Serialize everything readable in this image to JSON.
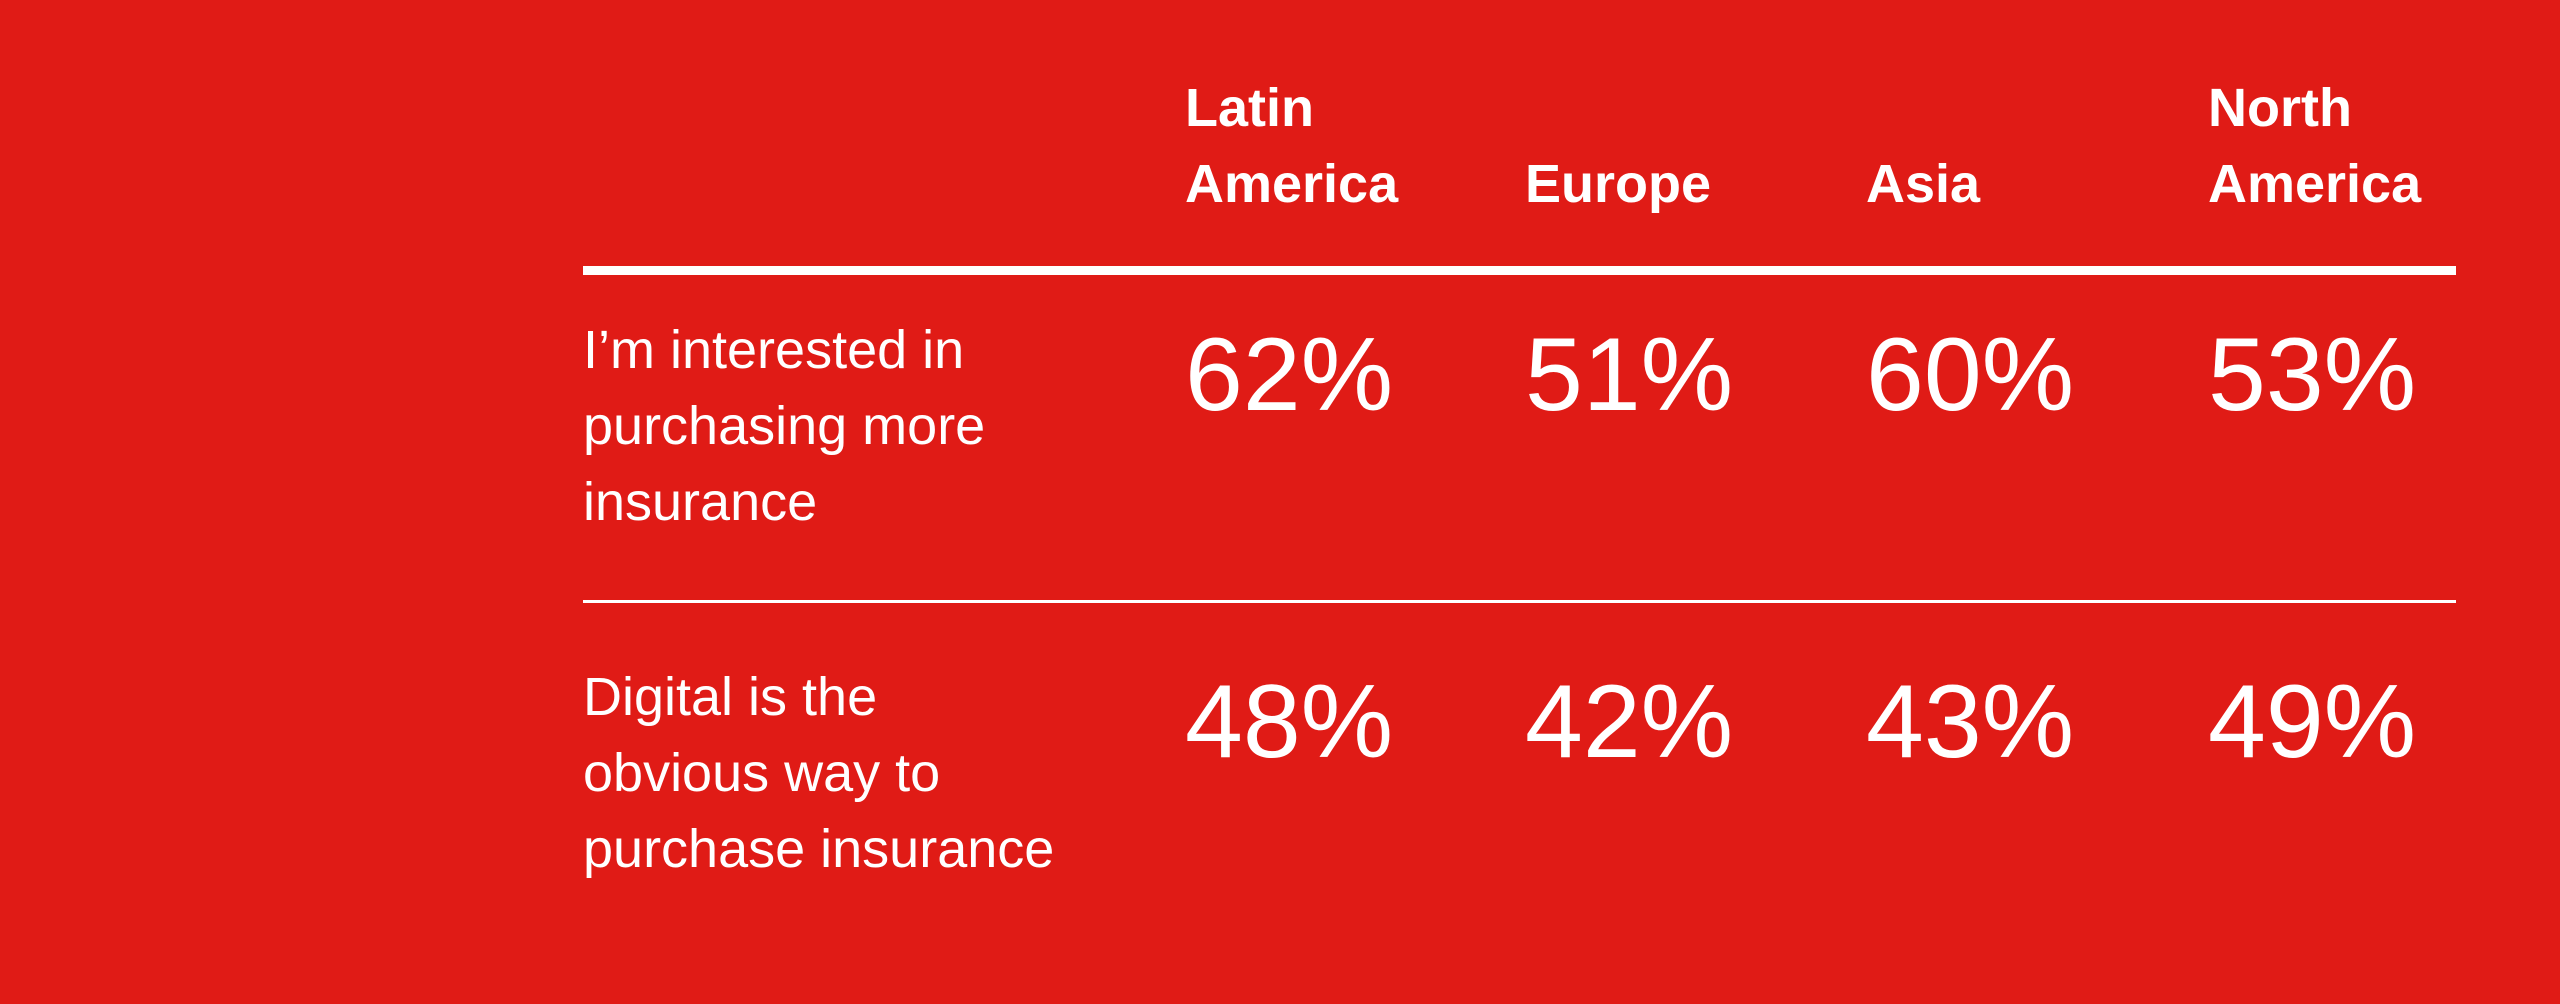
{
  "theme": {
    "background_color": "#E01B16",
    "text_color": "#FFFFFF",
    "rule_color": "#FFFFFF"
  },
  "table": {
    "column_headers": [
      "Latin America",
      "Europe",
      "Asia",
      "North America"
    ],
    "rows": [
      {
        "label": "I’m interested in purchasing more insurance",
        "lines": [
          "I’m interested in",
          "purchasing more",
          "insurance"
        ],
        "values": [
          "62%",
          "51%",
          "60%",
          "53%"
        ]
      },
      {
        "label": "Digital is the obvious way to purchase insurance",
        "lines": [
          "Digital is the",
          "obvious way to",
          "purchase insurance"
        ],
        "values": [
          "48%",
          "42%",
          "43%",
          "49%"
        ]
      }
    ]
  },
  "chart_data": {
    "type": "table",
    "title": "",
    "categories": [
      "Latin America",
      "Europe",
      "Asia",
      "North America"
    ],
    "series": [
      {
        "name": "I’m interested in purchasing more insurance",
        "values": [
          62,
          51,
          60,
          53
        ],
        "unit": "%"
      },
      {
        "name": "Digital is the obvious way to purchase insurance",
        "values": [
          48,
          42,
          43,
          49
        ],
        "unit": "%"
      }
    ],
    "layout": {
      "grid": "horizontal rules only",
      "value_format": "percent",
      "header_position": "top"
    }
  }
}
